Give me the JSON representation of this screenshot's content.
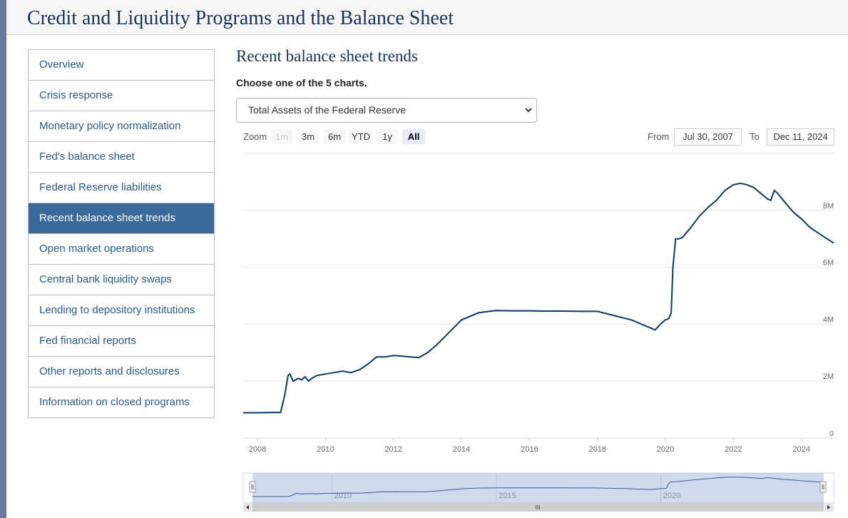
{
  "page": {
    "title": "Credit and Liquidity Programs and the Balance Sheet"
  },
  "sidebar": {
    "items": [
      {
        "label": "Overview",
        "active": false
      },
      {
        "label": "Crisis response",
        "active": false
      },
      {
        "label": "Monetary policy normalization",
        "active": false
      },
      {
        "label": "Fed's balance sheet",
        "active": false
      },
      {
        "label": "Federal Reserve liabilities",
        "active": false
      },
      {
        "label": "Recent balance sheet trends",
        "active": true
      },
      {
        "label": "Open market operations",
        "active": false
      },
      {
        "label": "Central bank liquidity swaps",
        "active": false
      },
      {
        "label": "Lending to depository institutions",
        "active": false
      },
      {
        "label": "Fed financial reports",
        "active": false
      },
      {
        "label": "Other reports and disclosures",
        "active": false
      },
      {
        "label": "Information on closed programs",
        "active": false
      }
    ]
  },
  "main": {
    "heading": "Recent balance sheet trends",
    "choose_label": "Choose one of the 5 charts.",
    "select_value": "Total Assets of the Federal Reserve"
  },
  "zoom": {
    "label": "Zoom",
    "buttons": [
      {
        "label": "1m",
        "state": "disabled"
      },
      {
        "label": "3m",
        "state": "normal"
      },
      {
        "label": "6m",
        "state": "normal"
      },
      {
        "label": "YTD",
        "state": "normal"
      },
      {
        "label": "1y",
        "state": "normal"
      },
      {
        "label": "All",
        "state": "selected"
      }
    ]
  },
  "range": {
    "from_label": "From",
    "from_value": "Jul 30, 2007",
    "to_label": "To",
    "to_value": "Dec 11, 2024"
  },
  "navigator": {
    "labels": [
      "2010",
      "2015",
      "2020"
    ],
    "scrollbar_grip": "III"
  },
  "chart_data": {
    "type": "line",
    "title": "",
    "xlabel": "",
    "ylabel": "",
    "color": "#0b3a6a",
    "xlim": [
      2007.58,
      2024.95
    ],
    "ylim": [
      0,
      10
    ],
    "x_ticks": [
      "2008",
      "2010",
      "2012",
      "2014",
      "2016",
      "2018",
      "2020",
      "2022",
      "2024"
    ],
    "y_ticks": [
      "0",
      "2M",
      "4M",
      "6M",
      "8M"
    ],
    "y_tick_values": [
      0,
      2,
      4,
      6,
      8
    ],
    "grid": true,
    "y_axis_side": "right",
    "series": [
      {
        "x": [
          2007.58,
          2008.0,
          2008.5,
          2008.68,
          2008.8,
          2008.9,
          2008.95,
          2009.05,
          2009.2,
          2009.3,
          2009.4,
          2009.5,
          2009.6,
          2009.75,
          2010.0,
          2010.25,
          2010.5,
          2010.75,
          2011.0,
          2011.25,
          2011.5,
          2011.75,
          2012.0,
          2012.25,
          2012.5,
          2012.75,
          2013.0,
          2013.25,
          2013.5,
          2013.75,
          2014.0,
          2014.5,
          2014.8,
          2015.0,
          2015.5,
          2016.0,
          2016.5,
          2017.0,
          2017.5,
          2018.0,
          2018.5,
          2019.0,
          2019.5,
          2019.7,
          2019.85,
          2020.0,
          2020.1,
          2020.17,
          2020.22,
          2020.3,
          2020.4,
          2020.5,
          2020.75,
          2021.0,
          2021.25,
          2021.5,
          2021.75,
          2022.0,
          2022.2,
          2022.4,
          2022.6,
          2022.8,
          2023.0,
          2023.1,
          2023.2,
          2023.3,
          2023.5,
          2023.75,
          2024.0,
          2024.25,
          2024.5,
          2024.75,
          2024.95
        ],
        "y": [
          0.89,
          0.89,
          0.9,
          0.9,
          1.5,
          2.2,
          2.25,
          2.0,
          2.1,
          2.05,
          2.15,
          2.0,
          2.1,
          2.2,
          2.25,
          2.3,
          2.35,
          2.3,
          2.4,
          2.6,
          2.85,
          2.85,
          2.9,
          2.88,
          2.85,
          2.83,
          3.0,
          3.25,
          3.55,
          3.85,
          4.15,
          4.4,
          4.45,
          4.48,
          4.47,
          4.47,
          4.46,
          4.46,
          4.45,
          4.45,
          4.3,
          4.15,
          3.9,
          3.8,
          4.0,
          4.15,
          4.2,
          4.4,
          6.0,
          7.0,
          7.0,
          7.05,
          7.4,
          7.8,
          8.1,
          8.35,
          8.7,
          8.9,
          8.95,
          8.9,
          8.8,
          8.6,
          8.4,
          8.35,
          8.7,
          8.6,
          8.3,
          7.95,
          7.7,
          7.4,
          7.2,
          7.0,
          6.85
        ]
      }
    ]
  }
}
